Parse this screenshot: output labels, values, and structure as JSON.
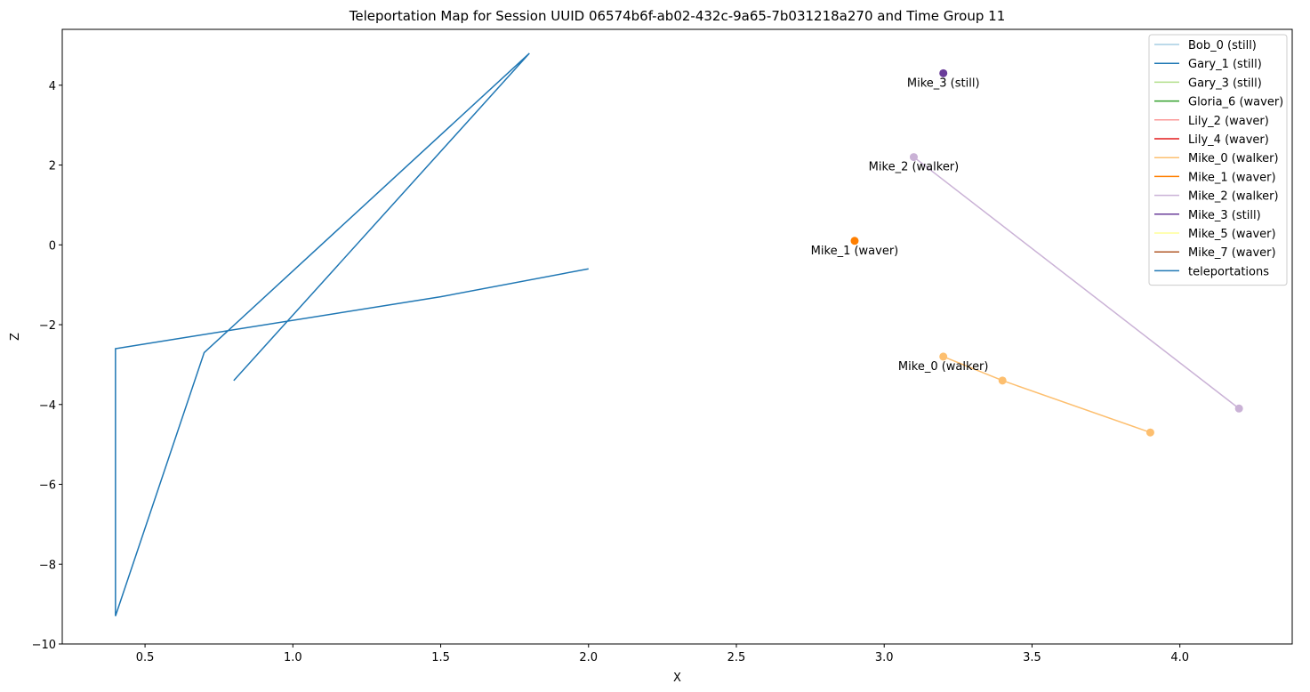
{
  "chart_data": {
    "type": "line",
    "title": "Teleportation Map for Session UUID 06574b6f-ab02-432c-9a65-7b031218a270 and Time Group 11",
    "xlabel": "X",
    "ylabel": "Z",
    "xlim": [
      0.22,
      4.38
    ],
    "ylim": [
      -10.0,
      5.4
    ],
    "xticks": [
      0.5,
      1.0,
      1.5,
      2.0,
      2.5,
      3.0,
      3.5,
      4.0
    ],
    "xtick_labels": [
      "0.5",
      "1.0",
      "1.5",
      "2.0",
      "2.5",
      "3.0",
      "3.5",
      "4.0"
    ],
    "yticks": [
      -10,
      -8,
      -6,
      -4,
      -2,
      0,
      2,
      4
    ],
    "ytick_labels": [
      "−10",
      "−8",
      "−6",
      "−4",
      "−2",
      "0",
      "2",
      "4"
    ],
    "grid": false,
    "legend_position": "top-right",
    "series": [
      {
        "name": "Bob_0 (still)",
        "color": "#a6cee3",
        "x": [],
        "y": []
      },
      {
        "name": "Gary_1 (still)",
        "color": "#1f78b4",
        "x": [],
        "y": []
      },
      {
        "name": "Gary_3 (still)",
        "color": "#b2df8a",
        "x": [],
        "y": []
      },
      {
        "name": "Gloria_6 (waver)",
        "color": "#33a02c",
        "x": [],
        "y": []
      },
      {
        "name": "Lily_2 (waver)",
        "color": "#fb9a99",
        "x": [],
        "y": []
      },
      {
        "name": "Lily_4 (waver)",
        "color": "#e31a1c",
        "x": [],
        "y": []
      },
      {
        "name": "Mike_0 (walker)",
        "color": "#fdbf6f",
        "x": [
          3.2,
          3.4,
          3.9
        ],
        "y": [
          -2.8,
          -3.4,
          -4.7
        ],
        "annotation": "Mike_0 (walker)"
      },
      {
        "name": "Mike_1 (waver)",
        "color": "#ff7f00",
        "x": [
          2.9
        ],
        "y": [
          0.1
        ],
        "annotation": "Mike_1 (waver)"
      },
      {
        "name": "Mike_2 (walker)",
        "color": "#cab2d6",
        "x": [
          3.1,
          4.2
        ],
        "y": [
          2.2,
          -4.1
        ],
        "annotation": "Mike_2 (walker)"
      },
      {
        "name": "Mike_3 (still)",
        "color": "#6a3d9a",
        "x": [
          3.2
        ],
        "y": [
          4.3
        ],
        "annotation": "Mike_3 (still)"
      },
      {
        "name": "Mike_5 (waver)",
        "color": "#ffff99",
        "x": [],
        "y": []
      },
      {
        "name": "Mike_7 (waver)",
        "color": "#b15928",
        "x": [],
        "y": []
      },
      {
        "name": "teleportations",
        "color": "#1f77b4",
        "markers": false,
        "x": [
          2.0,
          1.5,
          0.4,
          0.4,
          0.7,
          1.8,
          0.8
        ],
        "y": [
          -0.6,
          -1.3,
          -2.6,
          -9.3,
          -2.7,
          4.8,
          -3.4
        ]
      }
    ]
  }
}
